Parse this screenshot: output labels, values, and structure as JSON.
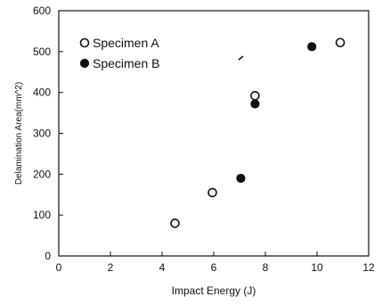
{
  "chart_data": {
    "type": "scatter",
    "title": "",
    "xlabel": "Impact Energy (J)",
    "ylabel": "Delamination Area(mm^2)",
    "xlim": [
      0,
      12
    ],
    "ylim": [
      0,
      600
    ],
    "xticks": [
      "0",
      "2",
      "4",
      "6",
      "8",
      "10",
      "12"
    ],
    "yticks": [
      "0",
      "100",
      "200",
      "300",
      "400",
      "500",
      "600"
    ],
    "grid": false,
    "legend_position": "top-left",
    "series": [
      {
        "name": "Specimen A",
        "marker": "open-circle",
        "color": "#111111",
        "points": [
          {
            "x": 4.5,
            "y": 80
          },
          {
            "x": 5.95,
            "y": 155
          },
          {
            "x": 7.6,
            "y": 392
          },
          {
            "x": 10.9,
            "y": 522
          }
        ]
      },
      {
        "name": "Specimen B",
        "marker": "filled-circle",
        "color": "#111111",
        "points": [
          {
            "x": 7.05,
            "y": 190
          },
          {
            "x": 7.6,
            "y": 372
          },
          {
            "x": 9.8,
            "y": 512
          }
        ]
      }
    ]
  }
}
